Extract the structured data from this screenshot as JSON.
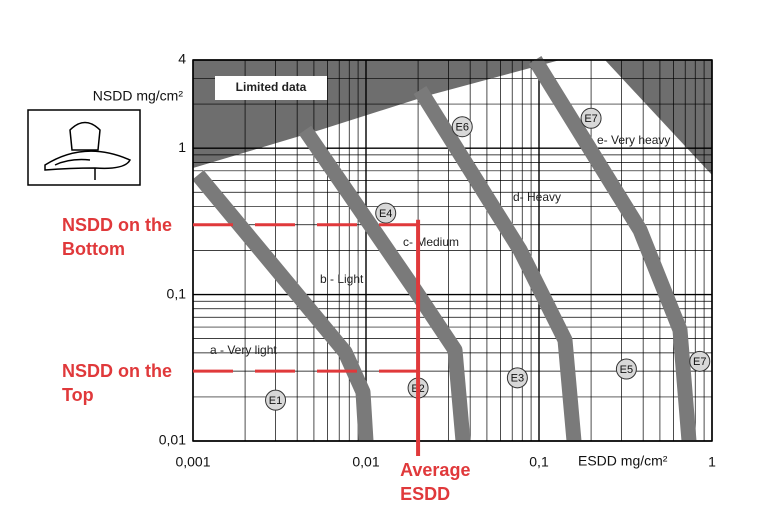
{
  "chart_data": {
    "type": "scatter",
    "x_label": "ESDD mg/cm²",
    "y_label": "NSDD mg/cm²",
    "xscale": "log",
    "yscale": "log",
    "xlim": [
      0.001,
      1
    ],
    "ylim": [
      0.01,
      4
    ],
    "xticks": [
      {
        "value": 0.001,
        "label": "0,001"
      },
      {
        "value": 0.01,
        "label": "0,01"
      },
      {
        "value": 0.1,
        "label": "0,1"
      },
      1
    ],
    "yticks": [
      {
        "value": 0.01,
        "label": "0,01"
      },
      {
        "value": 0.1,
        "label": "0,1"
      },
      1,
      4
    ],
    "grid": true,
    "limited_data_label": "Limited data",
    "zones": [
      "a - Very light",
      "b - Light",
      "c- Medium",
      "d- Heavy",
      "e- Very heavy"
    ],
    "points": {
      "labels": [
        "E1",
        "E2",
        "E3",
        "E4",
        "E5",
        "E6",
        "E7",
        "E7"
      ],
      "x": [
        0.003,
        0.02,
        0.075,
        0.013,
        0.32,
        0.036,
        0.2,
        0.85
      ],
      "y": [
        0.019,
        0.023,
        0.027,
        0.36,
        0.031,
        1.4,
        1.6,
        0.035
      ]
    },
    "annotations": [
      {
        "text": "NSDD on the Bottom",
        "y": 0.3
      },
      {
        "text": "NSDD on the Top",
        "y": 0.03
      },
      {
        "text": "Average ESDD",
        "x": 0.02
      }
    ],
    "annotation_color": "#e0393b"
  }
}
